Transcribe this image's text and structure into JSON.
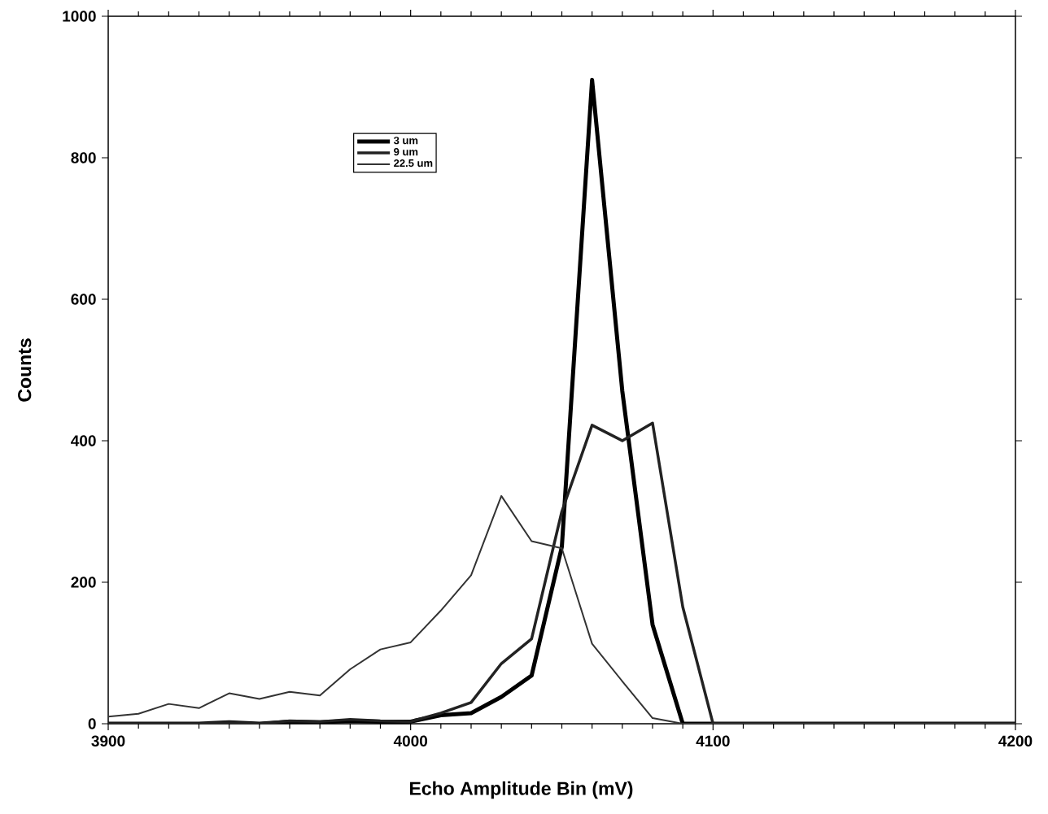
{
  "chart_data": {
    "type": "line",
    "xlabel": "Echo Amplitude Bin (mV)",
    "ylabel": "Counts",
    "x": [
      3900,
      3910,
      3920,
      3930,
      3940,
      3950,
      3960,
      3970,
      3980,
      3990,
      4000,
      4010,
      4020,
      4030,
      4040,
      4050,
      4060,
      4070,
      4080,
      4090,
      4100,
      4110,
      4120,
      4130,
      4140,
      4150,
      4160,
      4170,
      4180,
      4190,
      4200
    ],
    "series": [
      {
        "name": "3 um",
        "color": "#000000",
        "values": [
          0,
          0,
          0,
          0,
          2,
          0,
          3,
          2,
          4,
          3,
          3,
          12,
          15,
          38,
          68,
          250,
          910,
          470,
          140,
          0,
          0,
          0,
          0,
          0,
          0,
          0,
          0,
          0,
          0,
          0,
          0
        ]
      },
      {
        "name": "9 um",
        "color": "#222222",
        "values": [
          0,
          0,
          0,
          0,
          2,
          0,
          4,
          3,
          6,
          4,
          3,
          15,
          30,
          85,
          120,
          300,
          422,
          400,
          425,
          165,
          0,
          0,
          0,
          0,
          0,
          0,
          0,
          0,
          0,
          0,
          0
        ]
      },
      {
        "name": "22.5 um",
        "color": "#333333",
        "values": [
          10,
          14,
          28,
          22,
          43,
          35,
          45,
          40,
          77,
          105,
          115,
          160,
          210,
          322,
          258,
          248,
          113,
          60,
          8,
          0,
          0,
          0,
          0,
          0,
          0,
          0,
          0,
          0,
          0,
          0,
          0
        ]
      }
    ],
    "xlim": [
      3900,
      4200
    ],
    "xticks": [
      3900,
      4000,
      4100,
      4200
    ],
    "ylim": [
      0,
      1000
    ],
    "yticks": [
      0,
      200,
      400,
      600,
      800,
      1000
    ],
    "grid": false,
    "legend": "top left",
    "line_style": "solid",
    "marker": "none"
  }
}
